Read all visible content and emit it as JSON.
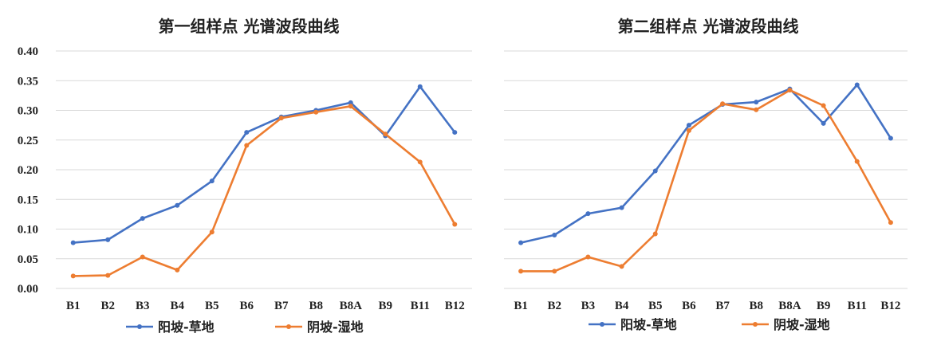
{
  "chart_data": [
    {
      "type": "line",
      "title": "第一组样点 光谱波段曲线",
      "categories": [
        "B1",
        "B2",
        "B3",
        "B4",
        "B5",
        "B6",
        "B7",
        "B8",
        "B8A",
        "B9",
        "B11",
        "B12"
      ],
      "ylim": [
        0,
        0.4
      ],
      "yticks": [
        "0.00",
        "0.05",
        "0.10",
        "0.15",
        "0.20",
        "0.25",
        "0.30",
        "0.35",
        "0.40"
      ],
      "grid": true,
      "legend_position": "bottom",
      "series": [
        {
          "name": "阳坡-草地",
          "color": "#4472C4",
          "values": [
            0.077,
            0.082,
            0.118,
            0.14,
            0.181,
            0.263,
            0.289,
            0.3,
            0.313,
            0.257,
            0.34,
            0.263
          ]
        },
        {
          "name": "阴坡-湿地",
          "color": "#ED7D31",
          "values": [
            0.021,
            0.022,
            0.053,
            0.031,
            0.095,
            0.241,
            0.287,
            0.297,
            0.307,
            0.26,
            0.213,
            0.108
          ]
        }
      ]
    },
    {
      "type": "line",
      "title": "第二组样点 光谱波段曲线",
      "categories": [
        "B1",
        "B2",
        "B3",
        "B4",
        "B5",
        "B6",
        "B7",
        "B8",
        "B8A",
        "B9",
        "B11",
        "B12"
      ],
      "ylim": [
        0,
        0.4
      ],
      "grid": true,
      "legend_position": "bottom",
      "series": [
        {
          "name": "阳坡-草地",
          "color": "#4472C4",
          "values": [
            0.077,
            0.09,
            0.126,
            0.136,
            0.198,
            0.275,
            0.31,
            0.314,
            0.336,
            0.278,
            0.343,
            0.253
          ]
        },
        {
          "name": "阴坡-湿地",
          "color": "#ED7D31",
          "values": [
            0.029,
            0.029,
            0.053,
            0.037,
            0.092,
            0.266,
            0.311,
            0.301,
            0.334,
            0.308,
            0.214,
            0.111
          ]
        }
      ]
    }
  ]
}
